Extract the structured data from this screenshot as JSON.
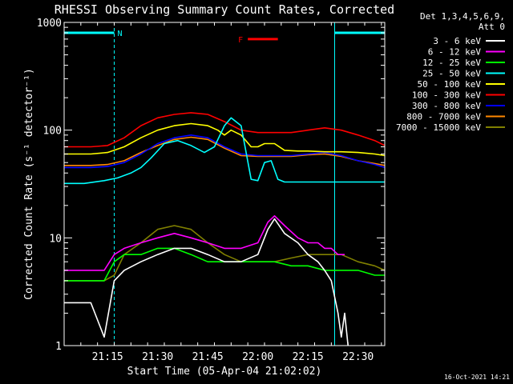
{
  "chart_data": {
    "type": "line",
    "title": "RHESSI Observing Summary Count Rates, Corrected",
    "xlabel": "Start Time (05-Apr-04 21:02:02)",
    "ylabel": "Corrected Count Rate (s⁻¹ detector⁻¹)",
    "y_scale": "log",
    "ylim": [
      1,
      1000
    ],
    "xlim": [
      "21:02",
      "22:38"
    ],
    "x_tick_labels": [
      "21:15",
      "21:30",
      "21:45",
      "22:00",
      "22:15",
      "22:30"
    ],
    "y_tick_labels": [
      "1",
      "10",
      "100",
      "1000"
    ],
    "legend_header": [
      "Det 1,3,4,5,6,9,",
      "Att 0"
    ],
    "timestamp": "16-Oct-2021 14:21",
    "grid": false,
    "legend_position": "right",
    "annotations": [
      {
        "label": "N",
        "color": "#00ffff",
        "x_start": "21:02",
        "x_end": "21:17",
        "y": 800
      },
      {
        "label": "F",
        "color": "#ff0000",
        "x_start": "21:57",
        "x_end": "22:06",
        "y": 700
      },
      {
        "label": "",
        "color": "#00ffff",
        "x_start": "22:23",
        "x_end": "22:38",
        "y": 800
      }
    ],
    "vertical_lines": [
      {
        "x": "21:02",
        "style": "solid"
      },
      {
        "x": "21:17",
        "style": "dashed"
      },
      {
        "x": "22:23",
        "style": "solid"
      },
      {
        "x": "22:38",
        "style": "dashed"
      }
    ],
    "series": [
      {
        "name": "3 - 6 keV",
        "color": "#ffffff",
        "x": [
          "21:02",
          "21:10",
          "21:14",
          "21:17",
          "21:20",
          "21:25",
          "21:30",
          "21:35",
          "21:40",
          "21:45",
          "21:50",
          "21:55",
          "22:00",
          "22:03",
          "22:05",
          "22:08",
          "22:12",
          "22:15",
          "22:18",
          "22:20",
          "22:22",
          "22:24",
          "22:25",
          "22:26",
          "22:27"
        ],
        "y": [
          2.5,
          2.5,
          1.2,
          4,
          5,
          6,
          7,
          8,
          8,
          7,
          6,
          6,
          7,
          12,
          15,
          11,
          9,
          7,
          6,
          5,
          4,
          2,
          1.2,
          2,
          1
        ]
      },
      {
        "name": "6 - 12 keV",
        "color": "#ff00ff",
        "x": [
          "21:02",
          "21:10",
          "21:14",
          "21:17",
          "21:20",
          "21:25",
          "21:30",
          "21:35",
          "21:40",
          "21:45",
          "21:50",
          "21:55",
          "22:00",
          "22:03",
          "22:05",
          "22:08",
          "22:12",
          "22:15",
          "22:18",
          "22:20",
          "22:22",
          "22:24",
          "22:26"
        ],
        "y": [
          5,
          5,
          5,
          7,
          8,
          9,
          10,
          11,
          10,
          9,
          8,
          8,
          9,
          14,
          16,
          13,
          10,
          9,
          9,
          8,
          8,
          7,
          7
        ]
      },
      {
        "name": "12 - 25 keV",
        "color": "#00ff00",
        "x": [
          "21:02",
          "21:10",
          "21:14",
          "21:17",
          "21:20",
          "21:25",
          "21:30",
          "21:35",
          "21:40",
          "21:45",
          "21:50",
          "21:55",
          "22:00",
          "22:05",
          "22:10",
          "22:15",
          "22:20",
          "22:25",
          "22:30",
          "22:35",
          "22:38"
        ],
        "y": [
          4,
          4,
          4,
          6,
          7,
          7,
          8,
          8,
          7,
          6,
          6,
          6,
          6,
          6,
          5.5,
          5.5,
          5,
          5,
          5,
          4.5,
          4.5
        ]
      },
      {
        "name": "25 - 50 keV",
        "color": "#00ffff",
        "x": [
          "21:02",
          "21:08",
          "21:14",
          "21:18",
          "21:22",
          "21:25",
          "21:28",
          "21:32",
          "21:36",
          "21:40",
          "21:44",
          "21:47",
          "21:50",
          "21:52",
          "21:55",
          "21:58",
          "22:00",
          "22:02",
          "22:04",
          "22:06",
          "22:08",
          "22:10",
          "22:15",
          "22:20",
          "22:25",
          "22:30",
          "22:35",
          "22:38"
        ],
        "y": [
          32,
          32,
          34,
          36,
          40,
          45,
          55,
          75,
          80,
          72,
          62,
          70,
          110,
          130,
          110,
          35,
          34,
          50,
          52,
          35,
          33,
          33,
          33,
          33,
          33,
          33,
          33,
          33
        ]
      },
      {
        "name": "50 - 100 keV",
        "color": "#ffff00",
        "x": [
          "21:02",
          "21:10",
          "21:15",
          "21:20",
          "21:25",
          "21:30",
          "21:35",
          "21:40",
          "21:45",
          "21:48",
          "21:50",
          "21:52",
          "21:55",
          "21:58",
          "22:00",
          "22:02",
          "22:05",
          "22:08",
          "22:12",
          "22:15",
          "22:20",
          "22:25",
          "22:30",
          "22:35",
          "22:38"
        ],
        "y": [
          60,
          60,
          62,
          70,
          85,
          100,
          110,
          115,
          110,
          100,
          90,
          100,
          90,
          70,
          70,
          75,
          75,
          65,
          64,
          64,
          63,
          63,
          62,
          60,
          58
        ]
      },
      {
        "name": "100 - 300 keV",
        "color": "#ff0000",
        "x": [
          "21:02",
          "21:10",
          "21:15",
          "21:20",
          "21:25",
          "21:30",
          "21:35",
          "21:40",
          "21:45",
          "21:50",
          "21:55",
          "22:00",
          "22:05",
          "22:10",
          "22:15",
          "22:20",
          "22:25",
          "22:30",
          "22:35",
          "22:38"
        ],
        "y": [
          70,
          70,
          72,
          85,
          110,
          130,
          140,
          145,
          140,
          120,
          100,
          95,
          95,
          95,
          100,
          105,
          100,
          90,
          80,
          72
        ]
      },
      {
        "name": "300 - 800 keV",
        "color": "#0000ff",
        "x": [
          "21:02",
          "21:10",
          "21:15",
          "21:20",
          "21:25",
          "21:30",
          "21:35",
          "21:40",
          "21:45",
          "21:50",
          "21:55",
          "22:00",
          "22:05",
          "22:10",
          "22:15",
          "22:20",
          "22:25",
          "22:30",
          "22:35",
          "22:38"
        ],
        "y": [
          45,
          45,
          46,
          50,
          60,
          75,
          85,
          90,
          85,
          70,
          60,
          58,
          58,
          58,
          60,
          62,
          58,
          52,
          48,
          45
        ]
      },
      {
        "name": "800 - 7000 keV",
        "color": "#ff8800",
        "x": [
          "21:02",
          "21:10",
          "21:15",
          "21:20",
          "21:25",
          "21:30",
          "21:35",
          "21:40",
          "21:45",
          "21:50",
          "21:55",
          "22:00",
          "22:05",
          "22:10",
          "22:15",
          "22:20",
          "22:25",
          "22:30",
          "22:35",
          "22:38"
        ],
        "y": [
          47,
          47,
          48,
          52,
          62,
          72,
          82,
          86,
          82,
          68,
          58,
          57,
          57,
          57,
          59,
          60,
          57,
          52,
          49,
          47
        ]
      },
      {
        "name": "7000 - 15000 keV",
        "color": "#808000",
        "x": [
          "21:02",
          "21:10",
          "21:14",
          "21:17",
          "21:20",
          "21:25",
          "21:30",
          "21:35",
          "21:40",
          "21:45",
          "21:50",
          "21:55",
          "22:00",
          "22:05",
          "22:10",
          "22:15",
          "22:20",
          "22:25",
          "22:30",
          "22:35",
          "22:38"
        ],
        "y": [
          4,
          4,
          4,
          4.5,
          7,
          9,
          12,
          13,
          12,
          9,
          7,
          6,
          6,
          6,
          6.5,
          7,
          7,
          7,
          6,
          5.5,
          5
        ]
      }
    ]
  }
}
